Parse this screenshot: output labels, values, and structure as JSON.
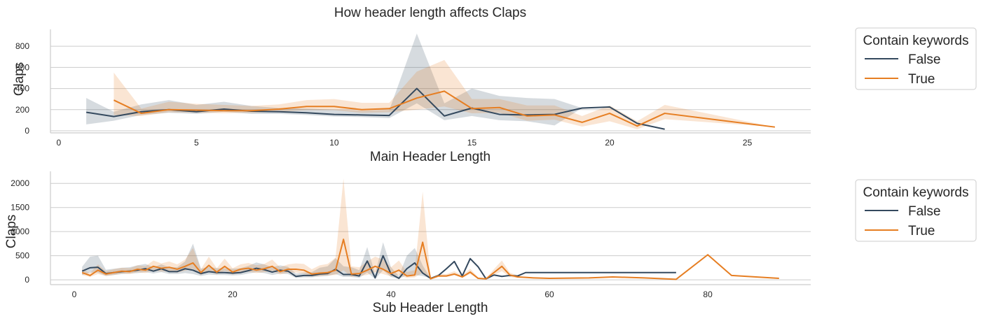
{
  "chart_data": [
    {
      "type": "line",
      "title": "How header length affects Claps",
      "xlabel": "Main Header Length",
      "ylabel": "Claps",
      "xlim": [
        -0.3,
        27.3
      ],
      "ylim": [
        -20,
        960
      ],
      "xticks": [
        0,
        5,
        10,
        15,
        20,
        25
      ],
      "yticks": [
        0,
        200,
        400,
        600,
        800
      ],
      "grid": "horizontal",
      "legend": {
        "title": "Contain keywords",
        "position": "outside right",
        "labels": [
          "False",
          "True"
        ]
      },
      "series": [
        {
          "name": "False",
          "color": "#34495e",
          "x": [
            1,
            2,
            3,
            4,
            5,
            6,
            7,
            8,
            9,
            10,
            11,
            12,
            13,
            14,
            15,
            16,
            17,
            18,
            19,
            20,
            21,
            22
          ],
          "y": [
            175,
            135,
            180,
            200,
            180,
            205,
            185,
            180,
            170,
            155,
            150,
            145,
            400,
            140,
            215,
            155,
            150,
            155,
            215,
            225,
            70,
            15
          ],
          "lower": [
            60,
            95,
            150,
            170,
            160,
            180,
            160,
            160,
            150,
            135,
            130,
            120,
            260,
            100,
            140,
            100,
            90,
            50,
            215,
            225,
            70,
            15
          ],
          "upper": [
            310,
            180,
            250,
            290,
            245,
            275,
            235,
            215,
            210,
            200,
            190,
            195,
            920,
            260,
            400,
            330,
            310,
            300,
            215,
            225,
            70,
            15
          ]
        },
        {
          "name": "True",
          "color": "#e67e22",
          "x": [
            2,
            3,
            4,
            5,
            6,
            7,
            8,
            9,
            10,
            11,
            12,
            13,
            14,
            15,
            16,
            17,
            18,
            19,
            20,
            21,
            22,
            26
          ],
          "y": [
            290,
            165,
            200,
            195,
            190,
            190,
            205,
            230,
            230,
            200,
            210,
            310,
            375,
            210,
            220,
            140,
            150,
            80,
            165,
            45,
            165,
            35
          ],
          "lower": [
            150,
            140,
            175,
            170,
            165,
            170,
            180,
            195,
            195,
            170,
            175,
            200,
            230,
            165,
            170,
            95,
            105,
            40,
            90,
            15,
            110,
            35
          ],
          "upper": [
            550,
            210,
            275,
            255,
            245,
            235,
            250,
            290,
            300,
            265,
            265,
            560,
            670,
            300,
            300,
            240,
            240,
            140,
            240,
            90,
            245,
            35
          ]
        }
      ]
    },
    {
      "type": "line",
      "title": "",
      "xlabel": "Sub Header Length",
      "ylabel": "Claps",
      "xlim": [
        -3,
        93
      ],
      "ylim": [
        -100,
        2250
      ],
      "xticks": [
        0,
        20,
        40,
        60,
        80
      ],
      "yticks": [
        0,
        500,
        1000,
        1500,
        2000
      ],
      "grid": "horizontal",
      "legend": {
        "title": "Contain keywords",
        "position": "outside right",
        "labels": [
          "False",
          "True"
        ]
      },
      "series": [
        {
          "name": "False",
          "color": "#34495e",
          "x": [
            1,
            2,
            3,
            4,
            5,
            6,
            7,
            8,
            9,
            10,
            11,
            12,
            13,
            14,
            15,
            16,
            17,
            18,
            19,
            20,
            21,
            22,
            23,
            24,
            25,
            26,
            27,
            28,
            29,
            30,
            31,
            32,
            33,
            34,
            35,
            36,
            37,
            38,
            39,
            40,
            41,
            42,
            43,
            44,
            45,
            46,
            47,
            48,
            49,
            50,
            51,
            52,
            53,
            54,
            55,
            56,
            57,
            60,
            65,
            70,
            76
          ],
          "y": [
            180,
            250,
            260,
            130,
            150,
            170,
            180,
            200,
            230,
            180,
            230,
            170,
            170,
            230,
            200,
            130,
            170,
            150,
            150,
            140,
            150,
            190,
            240,
            210,
            160,
            200,
            180,
            70,
            90,
            90,
            120,
            130,
            220,
            110,
            110,
            80,
            390,
            40,
            500,
            120,
            30,
            230,
            350,
            140,
            30,
            90,
            230,
            380,
            80,
            440,
            270,
            20,
            100,
            70,
            90,
            80,
            150,
            150,
            150,
            150,
            150
          ],
          "lower": [
            100,
            150,
            150,
            80,
            100,
            120,
            130,
            140,
            160,
            130,
            160,
            120,
            120,
            140,
            120,
            80,
            110,
            100,
            100,
            90,
            100,
            130,
            160,
            140,
            100,
            130,
            120,
            40,
            50,
            50,
            70,
            80,
            120,
            60,
            60,
            40,
            150,
            20,
            200,
            60,
            20,
            100,
            100,
            80,
            30,
            90,
            230,
            380,
            80,
            440,
            270,
            20,
            100,
            70,
            90,
            80,
            150,
            150,
            150,
            150,
            150
          ],
          "upper": [
            270,
            480,
            500,
            210,
            230,
            250,
            260,
            300,
            330,
            260,
            320,
            260,
            260,
            380,
            750,
            230,
            270,
            240,
            240,
            230,
            240,
            290,
            360,
            320,
            260,
            300,
            270,
            130,
            150,
            160,
            250,
            280,
            450,
            280,
            260,
            200,
            680,
            120,
            780,
            260,
            80,
            500,
            660,
            300,
            30,
            90,
            230,
            380,
            80,
            440,
            270,
            20,
            100,
            70,
            90,
            80,
            150,
            150,
            150,
            150,
            150
          ]
        },
        {
          "name": "True",
          "color": "#e67e22",
          "x": [
            1,
            2,
            3,
            4,
            5,
            6,
            7,
            8,
            9,
            10,
            11,
            12,
            13,
            14,
            15,
            16,
            17,
            18,
            19,
            20,
            21,
            22,
            23,
            24,
            25,
            26,
            27,
            28,
            29,
            30,
            31,
            32,
            33,
            34,
            35,
            36,
            37,
            38,
            39,
            40,
            41,
            42,
            43,
            44,
            45,
            46,
            47,
            48,
            49,
            50,
            51,
            52,
            53,
            54,
            55,
            56,
            57,
            58,
            60,
            65,
            68,
            72,
            76,
            80,
            83,
            89
          ],
          "y": [
            150,
            90,
            200,
            120,
            150,
            180,
            170,
            220,
            200,
            280,
            240,
            260,
            220,
            280,
            350,
            150,
            300,
            160,
            280,
            160,
            220,
            240,
            200,
            230,
            280,
            170,
            220,
            220,
            200,
            120,
            140,
            150,
            200,
            840,
            120,
            130,
            200,
            280,
            220,
            130,
            200,
            80,
            100,
            780,
            20,
            80,
            80,
            120,
            60,
            160,
            30,
            20,
            150,
            280,
            100,
            60,
            50,
            40,
            30,
            40,
            60,
            40,
            10,
            520,
            90,
            30
          ],
          "lower": [
            100,
            60,
            120,
            80,
            100,
            130,
            120,
            160,
            140,
            200,
            170,
            180,
            150,
            190,
            230,
            100,
            200,
            110,
            190,
            110,
            150,
            170,
            140,
            160,
            190,
            110,
            150,
            150,
            130,
            70,
            80,
            90,
            100,
            200,
            60,
            80,
            100,
            160,
            120,
            70,
            100,
            40,
            50,
            150,
            10,
            60,
            60,
            90,
            40,
            120,
            20,
            15,
            100,
            180,
            60,
            40,
            50,
            40,
            30,
            40,
            60,
            40,
            10,
            520,
            90,
            30
          ],
          "upper": [
            220,
            140,
            320,
            180,
            220,
            250,
            240,
            300,
            280,
            400,
            340,
            380,
            320,
            420,
            660,
            220,
            480,
            240,
            440,
            240,
            320,
            350,
            300,
            330,
            420,
            260,
            320,
            340,
            330,
            220,
            300,
            330,
            460,
            2100,
            280,
            260,
            380,
            480,
            420,
            260,
            400,
            160,
            200,
            1830,
            40,
            120,
            120,
            180,
            90,
            230,
            50,
            30,
            220,
            400,
            150,
            90,
            50,
            40,
            30,
            40,
            60,
            40,
            10,
            520,
            90,
            30
          ]
        }
      ]
    }
  ]
}
